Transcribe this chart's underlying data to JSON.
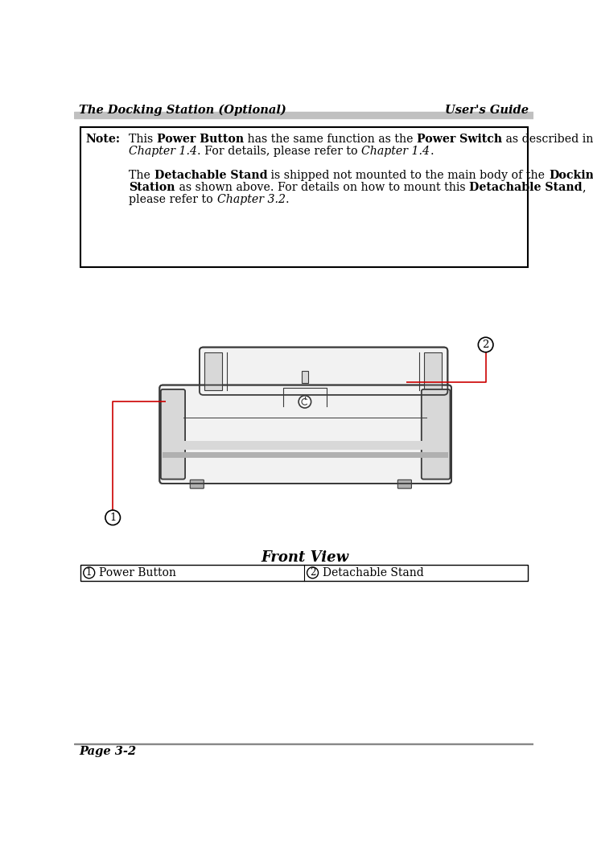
{
  "title_left": "The Docking Station (Optional)",
  "title_right": "User's Guide",
  "note_label": "Note:",
  "front_view_label": "Front View",
  "legend1_text": "Power Button",
  "legend2_text": "Detachable Stand",
  "page_label": "Page 3-2",
  "bg_color": "#ffffff",
  "note_border_color": "#000000",
  "diagram_color": "#3a3a3a",
  "red_line_color": "#cc0000",
  "gray_fill": "#f2f2f2",
  "gray_mid": "#d8d8d8",
  "gray_dark": "#b0b0b0",
  "header_gray": "#c0c0c0"
}
